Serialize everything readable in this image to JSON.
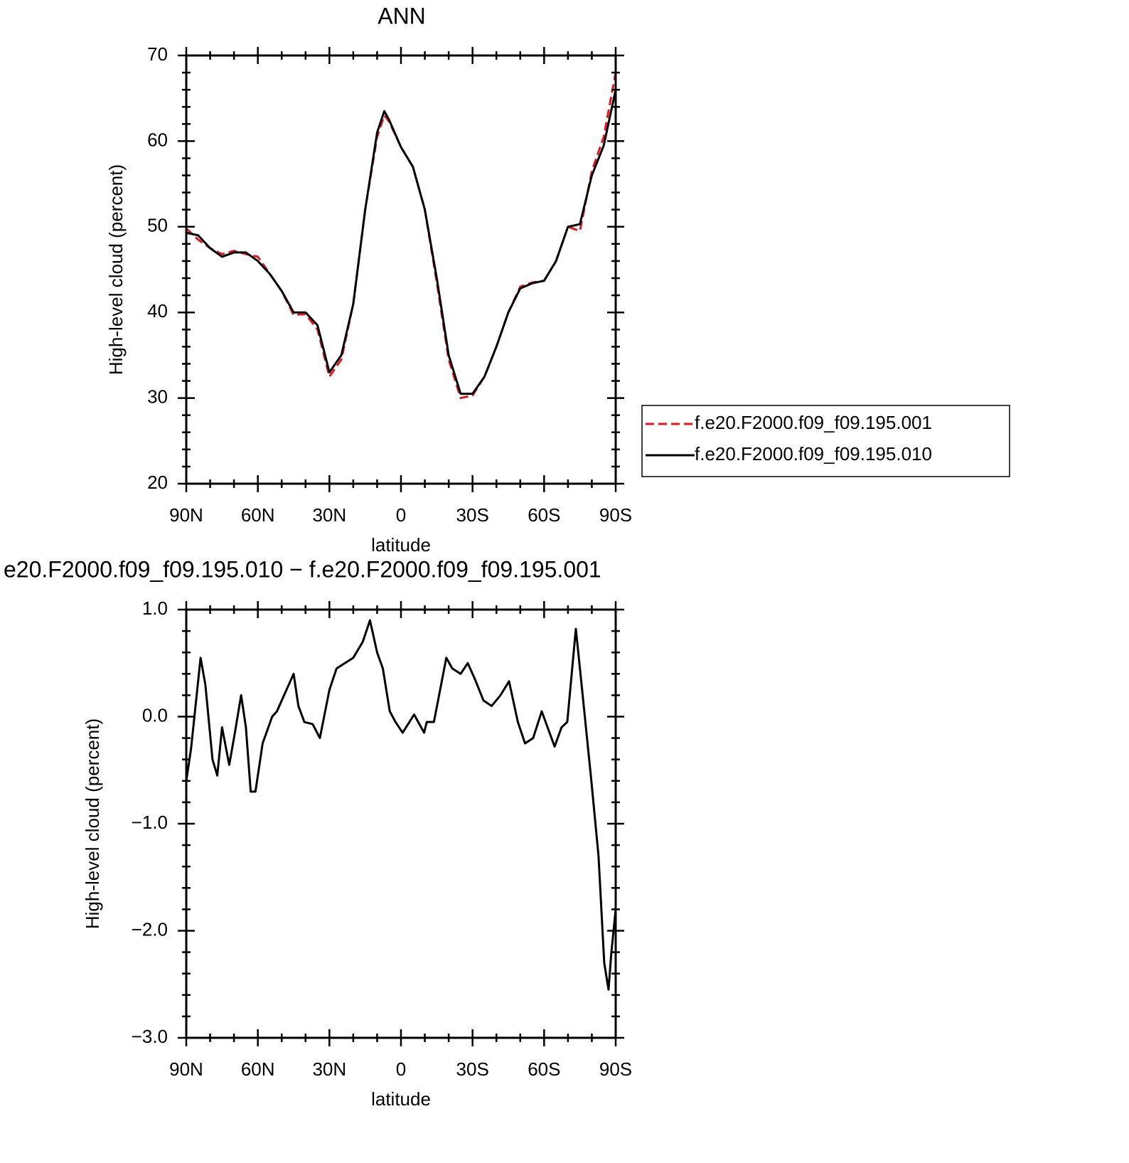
{
  "chart_data": [
    {
      "type": "line",
      "title": "ANN",
      "xlabel": "latitude",
      "ylabel": "High-level cloud (percent)",
      "x": [
        90,
        85,
        80,
        75,
        70,
        65,
        60,
        55,
        50,
        45,
        40,
        35,
        30,
        25,
        20,
        15,
        10,
        7,
        5,
        0,
        -5,
        -10,
        -15,
        -20,
        -25,
        -30,
        -35,
        -40,
        -45,
        -50,
        -55,
        -60,
        -65,
        -70,
        -75,
        -80,
        -85,
        -90
      ],
      "series": [
        {
          "name": "f.e20.F2000.f09_f09.195.001",
          "color": "#e8141b",
          "linestyle": "dashed",
          "values": [
            49.8,
            48.5,
            47.5,
            46.8,
            47.2,
            46.8,
            46.5,
            44.5,
            42.5,
            39.7,
            39.8,
            38,
            32.5,
            34.5,
            41,
            52,
            60.5,
            63,
            62.3,
            59.3,
            57,
            52,
            43.5,
            34.5,
            30,
            30.3,
            32.5,
            36,
            40,
            43,
            43.5,
            43.7,
            46,
            50,
            49.5,
            56.5,
            60.5,
            68
          ]
        },
        {
          "name": "f.e20.F2000.f09_f09.195.010",
          "color": "#000000",
          "linestyle": "solid",
          "values": [
            49.3,
            49,
            47.5,
            46.5,
            47,
            47,
            46,
            44.5,
            42.5,
            40,
            40,
            38.5,
            33,
            35,
            41,
            52,
            61,
            63.5,
            62.5,
            59.3,
            57,
            52,
            44,
            35,
            30.5,
            30.5,
            32.5,
            36,
            40,
            42.8,
            43.4,
            43.7,
            46,
            50,
            50.3,
            56,
            59.5,
            66
          ]
        }
      ],
      "xlim": [
        90,
        -90
      ],
      "xticks": [
        {
          "value": 90,
          "label": "90N"
        },
        {
          "value": 60,
          "label": "60N"
        },
        {
          "value": 30,
          "label": "30N"
        },
        0,
        {
          "value": -30,
          "label": "30S"
        },
        {
          "value": -60,
          "label": "60S"
        },
        {
          "value": -90,
          "label": "90S"
        }
      ],
      "xminorticks": [
        80,
        70,
        50,
        40,
        20,
        10,
        -10,
        -20,
        -40,
        -50,
        -70,
        -80
      ],
      "ylim": [
        20,
        70
      ],
      "yticks": [
        20,
        30,
        40,
        50,
        60,
        70
      ],
      "yminorticks": [
        22,
        24,
        26,
        28,
        32,
        34,
        36,
        38,
        42,
        44,
        46,
        48,
        52,
        54,
        56,
        58,
        62,
        64,
        66,
        68
      ],
      "legend": "right"
    },
    {
      "type": "line",
      "title": "e20.F2000.f09_f09.195.010 − f.e20.F2000.f09_f09.195.001",
      "xlabel": "latitude",
      "ylabel": "High-level cloud (percent)",
      "x": [
        90,
        88,
        84,
        82,
        79,
        77,
        75,
        72,
        70,
        67,
        65,
        63,
        61,
        58,
        54,
        52,
        49,
        45,
        43,
        40.5,
        37,
        34,
        30,
        27,
        23.5,
        20,
        16,
        13,
        10,
        7.6,
        4.7,
        2.3,
        -0.7,
        -5.5,
        -9.7,
        -10.8,
        -13.8,
        -19,
        -21.5,
        -25,
        -28,
        -31,
        -34.6,
        -38,
        -41.7,
        -45.3,
        -49,
        -52,
        -55.4,
        -59,
        -64.4,
        -67.3,
        -69.7,
        -73.3,
        -75.7,
        -79.8,
        -82.8,
        -85.2,
        -87,
        -88.2,
        -90
      ],
      "series": [
        {
          "color": "#000000",
          "linestyle": "solid",
          "values": [
            -0.6,
            -0.3,
            0.55,
            0.3,
            -0.4,
            -0.55,
            -0.1,
            -0.45,
            -0.2,
            0.2,
            -0.1,
            -0.7,
            -0.7,
            -0.25,
            0.0,
            0.05,
            0.2,
            0.4,
            0.1,
            -0.05,
            -0.07,
            -0.2,
            0.25,
            0.45,
            0.5,
            0.55,
            0.7,
            0.9,
            0.6,
            0.45,
            0.05,
            -0.05,
            -0.15,
            0.02,
            -0.15,
            -0.05,
            -0.05,
            0.55,
            0.45,
            0.4,
            0.5,
            0.35,
            0.15,
            0.1,
            0.2,
            0.33,
            -0.05,
            -0.25,
            -0.2,
            0.05,
            -0.28,
            -0.1,
            -0.05,
            0.82,
            0.3,
            -0.6,
            -1.3,
            -2.3,
            -2.55,
            -2.2,
            -1.8
          ]
        }
      ],
      "xlim": [
        90,
        -90
      ],
      "xticks": [
        {
          "value": 90,
          "label": "90N"
        },
        {
          "value": 60,
          "label": "60N"
        },
        {
          "value": 30,
          "label": "30N"
        },
        0,
        {
          "value": -30,
          "label": "30S"
        },
        {
          "value": -60,
          "label": "60S"
        },
        {
          "value": -90,
          "label": "90S"
        }
      ],
      "xminorticks": [
        80,
        70,
        50,
        40,
        20,
        10,
        -10,
        -20,
        -40,
        -50,
        -70,
        -80
      ],
      "ylim": [
        -3,
        1
      ],
      "yticks": [
        {
          "value": -3,
          "label": "−3.0"
        },
        {
          "value": -2,
          "label": "−2.0"
        },
        {
          "value": -1,
          "label": "−1.0"
        },
        {
          "value": 0,
          "label": "0.0"
        },
        {
          "value": 1,
          "label": "1.0"
        }
      ],
      "yminorticks": [
        -2.8,
        -2.6,
        -2.4,
        -2.2,
        -1.8,
        -1.6,
        -1.4,
        -1.2,
        -0.8,
        -0.6,
        -0.4,
        -0.2,
        0.2,
        0.4,
        0.6,
        0.8
      ]
    }
  ]
}
